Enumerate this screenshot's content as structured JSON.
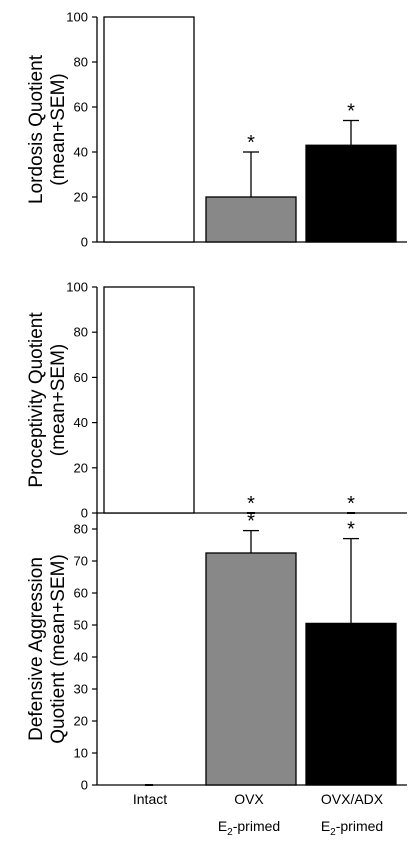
{
  "chart_data": [
    {
      "type": "bar",
      "ylabel": [
        "Lordosis Quotient",
        "(mean+SEM)"
      ],
      "ylim": [
        0,
        100
      ],
      "yticks": [
        0,
        20,
        40,
        60,
        80,
        100
      ],
      "categories": [
        "Intact",
        "OVX E2-primed",
        "OVX/ADX E2-primed"
      ],
      "values": [
        100,
        20,
        43
      ],
      "errors": [
        0,
        20,
        11
      ],
      "colors": [
        "#ffffff",
        "#888888",
        "#000000"
      ],
      "significance": [
        "",
        "*",
        "*"
      ]
    },
    {
      "type": "bar",
      "ylabel": [
        "Proceptivity Quotient",
        "(mean+SEM)"
      ],
      "ylim": [
        0,
        100
      ],
      "yticks": [
        0,
        20,
        40,
        60,
        80,
        100
      ],
      "categories": [
        "Intact",
        "OVX E2-primed",
        "OVX/ADX E2-primed"
      ],
      "values": [
        100,
        0,
        0
      ],
      "errors": [
        0,
        0,
        0
      ],
      "colors": [
        "#ffffff",
        "#888888",
        "#000000"
      ],
      "significance": [
        "",
        "*",
        "*"
      ]
    },
    {
      "type": "bar",
      "ylabel": [
        "Defensive Aggression",
        "Quotient  (mean+SEM)"
      ],
      "ylim": [
        0,
        85
      ],
      "yticks": [
        0,
        10,
        20,
        30,
        40,
        50,
        60,
        70,
        80
      ],
      "categories": [
        "Intact",
        "OVX E2-primed",
        "OVX/ADX E2-primed"
      ],
      "values": [
        0,
        72.5,
        50.5
      ],
      "errors": [
        0,
        7,
        26.5
      ],
      "colors": [
        "#ffffff",
        "#888888",
        "#000000"
      ],
      "significance": [
        "",
        "*",
        "*"
      ]
    }
  ],
  "xlabels": [
    {
      "line1": "Intact",
      "line2_base": "",
      "line2_sub": "",
      "line2_rest": ""
    },
    {
      "line1": "OVX",
      "line2_base": "E",
      "line2_sub": "2",
      "line2_rest": "-primed"
    },
    {
      "line1": "OVX/ADX",
      "line2_base": "E",
      "line2_sub": "2",
      "line2_rest": "-primed"
    }
  ]
}
